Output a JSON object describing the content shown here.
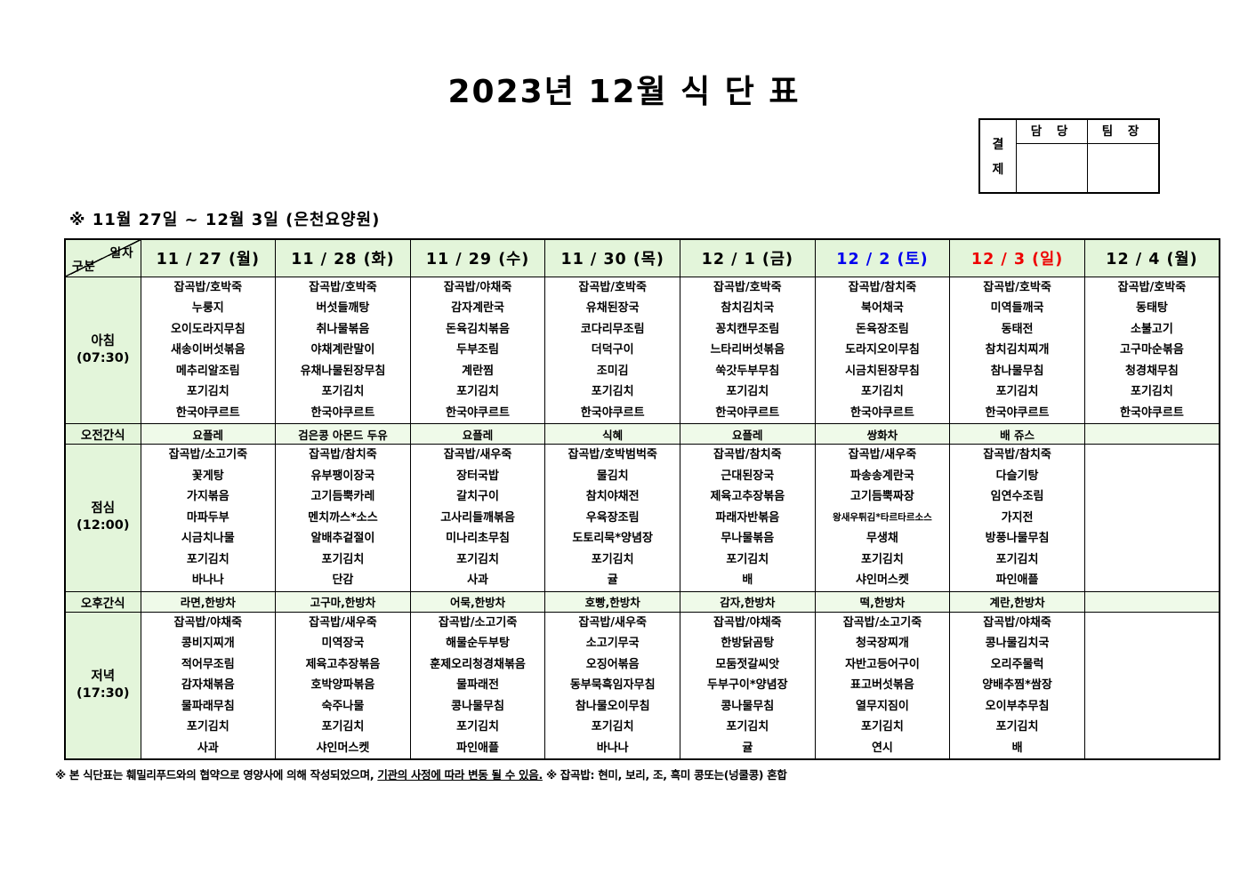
{
  "title": "2023년 12월 식 단 표",
  "approval": {
    "label_lines": [
      "결",
      "제"
    ],
    "columns": [
      "담 당",
      "팀 장"
    ]
  },
  "subtitle": "※ 11월 27일 ~ 12월 3일 (은천요양원)",
  "menu_table": {
    "corner": {
      "top": "일자",
      "bottom": "구분"
    },
    "date_headers": [
      {
        "label": "11 / 27 (월)",
        "color": "#000000"
      },
      {
        "label": "11 / 28 (화)",
        "color": "#000000"
      },
      {
        "label": "11 / 29 (수)",
        "color": "#000000"
      },
      {
        "label": "11 / 30 (목)",
        "color": "#000000"
      },
      {
        "label": "12 / 1 (금)",
        "color": "#000000"
      },
      {
        "label": "12 / 2 (토)",
        "color": "#0000ee"
      },
      {
        "label": "12 / 3 (일)",
        "color": "#ee0000"
      },
      {
        "label": "12 / 4 (월)",
        "color": "#000000"
      }
    ],
    "row_groups": [
      {
        "type": "meal",
        "label": "아침",
        "time": "(07:30)",
        "cells": [
          [
            "잡곡밥/호박죽",
            "누룽지",
            "오이도라지무침",
            "새송이버섯볶음",
            "메추리알조림",
            "포기김치",
            "한국야쿠르트"
          ],
          [
            "잡곡밥/호박죽",
            "버섯들깨탕",
            "취나물볶음",
            "야채계란말이",
            "유채나물된장무침",
            "포기김치",
            "한국야쿠르트"
          ],
          [
            "잡곡밥/야채죽",
            "감자계란국",
            "돈육김치볶음",
            "두부조림",
            "계란찜",
            "포기김치",
            "한국야쿠르트"
          ],
          [
            "잡곡밥/호박죽",
            "유채된장국",
            "코다리무조림",
            "더덕구이",
            "조미김",
            "포기김치",
            "한국야쿠르트"
          ],
          [
            "잡곡밥/호박죽",
            "참치김치국",
            "꽁치캔무조림",
            "느타리버섯볶음",
            "쑥갓두부무침",
            "포기김치",
            "한국야쿠르트"
          ],
          [
            "잡곡밥/참치죽",
            "북어채국",
            "돈육장조림",
            "도라지오이무침",
            "시금치된장무침",
            "포기김치",
            "한국야쿠르트"
          ],
          [
            "잡곡밥/호박죽",
            "미역들깨국",
            "동태전",
            "참치김치찌개",
            "참나물무침",
            "포기김치",
            "한국야쿠르트"
          ],
          [
            "잡곡밥/호박죽",
            "동태탕",
            "소불고기",
            "고구마순볶음",
            "청경채무침",
            "포기김치",
            "한국야쿠르트"
          ]
        ]
      },
      {
        "type": "snack",
        "label": "오전간식",
        "cells": [
          "요플레",
          "검은콩 아몬드 두유",
          "요플레",
          "식혜",
          "요플레",
          "쌍화차",
          "배 쥬스",
          ""
        ]
      },
      {
        "type": "meal",
        "label": "점심",
        "time": "(12:00)",
        "cells": [
          [
            "잡곡밥/소고기죽",
            "꽃게탕",
            "가지볶음",
            "마파두부",
            "시금치나물",
            "포기김치",
            "바나나"
          ],
          [
            "잡곡밥/참치죽",
            "유부팽이장국",
            "고기듬뿍카레",
            "멘치까스*소스",
            "알배추겉절이",
            "포기김치",
            "단감"
          ],
          [
            "잡곡밥/새우죽",
            "장터국밥",
            "갈치구이",
            "고사리들깨볶음",
            "미나리초무침",
            "포기김치",
            "사과"
          ],
          [
            "잡곡밥/호박범벅죽",
            "물김치",
            "참치야채전",
            "우육장조림",
            "도토리묵*양념장",
            "포기김치",
            "귤"
          ],
          [
            "잡곡밥/참치죽",
            "근대된장국",
            "제육고추장볶음",
            "파래자반볶음",
            "무나물볶음",
            "포기김치",
            "배"
          ],
          [
            "잡곡밥/새우죽",
            "파송송계란국",
            "고기듬뿍짜장",
            "왕새우튀김*타르타르소스",
            "무생채",
            "포기김치",
            "샤인머스켓"
          ],
          [
            "잡곡밥/참치죽",
            "다슬기탕",
            "임연수조림",
            "가지전",
            "방풍나물무침",
            "포기김치",
            "파인애플"
          ],
          [
            "",
            "",
            "",
            "",
            "",
            "",
            ""
          ]
        ]
      },
      {
        "type": "snack",
        "label": "오후간식",
        "cells": [
          "라면,한방차",
          "고구마,한방차",
          "어묵,한방차",
          "호빵,한방차",
          "감자,한방차",
          "떡,한방차",
          "계란,한방차",
          ""
        ]
      },
      {
        "type": "meal",
        "label": "저녁",
        "time": "(17:30)",
        "cells": [
          [
            "잡곡밥/야채죽",
            "콩비지찌개",
            "적어무조림",
            "감자채볶음",
            "물파래무침",
            "포기김치",
            "사과"
          ],
          [
            "잡곡밥/새우죽",
            "미역장국",
            "제육고추장볶음",
            "호박양파볶음",
            "숙주나물",
            "포기김치",
            "샤인머스켓"
          ],
          [
            "잡곡밥/소고기죽",
            "해물순두부탕",
            "훈제오리청경채볶음",
            "물파래전",
            "콩나물무침",
            "포기김치",
            "파인애플"
          ],
          [
            "잡곡밥/새우죽",
            "소고기무국",
            "오징어볶음",
            "동부묵흑임자무침",
            "참나물오이무침",
            "포기김치",
            "바나나"
          ],
          [
            "잡곡밥/야채죽",
            "한방닭곰탕",
            "모둠젓갈씨앗",
            "두부구이*양념장",
            "콩나물무침",
            "포기김치",
            "귤"
          ],
          [
            "잡곡밥/소고기죽",
            "청국장찌개",
            "자반고등어구이",
            "표고버섯볶음",
            "열무지짐이",
            "포기김치",
            "연시"
          ],
          [
            "잡곡밥/야채죽",
            "콩나물김치국",
            "오리주물럭",
            "양배추찜*쌈장",
            "오이부추무침",
            "포기김치",
            "배"
          ],
          [
            "",
            "",
            "",
            "",
            "",
            "",
            ""
          ]
        ]
      }
    ]
  },
  "footnote": {
    "part1": "※ 본 식단표는 훼밀리푸드와의 협약으로 영양사에 의해 작성되었으며, ",
    "underlined": "기관의 사정에 따라 변동 될 수 있음.",
    "part3": " ※ 잡곡밥: 현미, 보리, 조, 흑미 콩또는(넝쿨콩) 혼합"
  }
}
